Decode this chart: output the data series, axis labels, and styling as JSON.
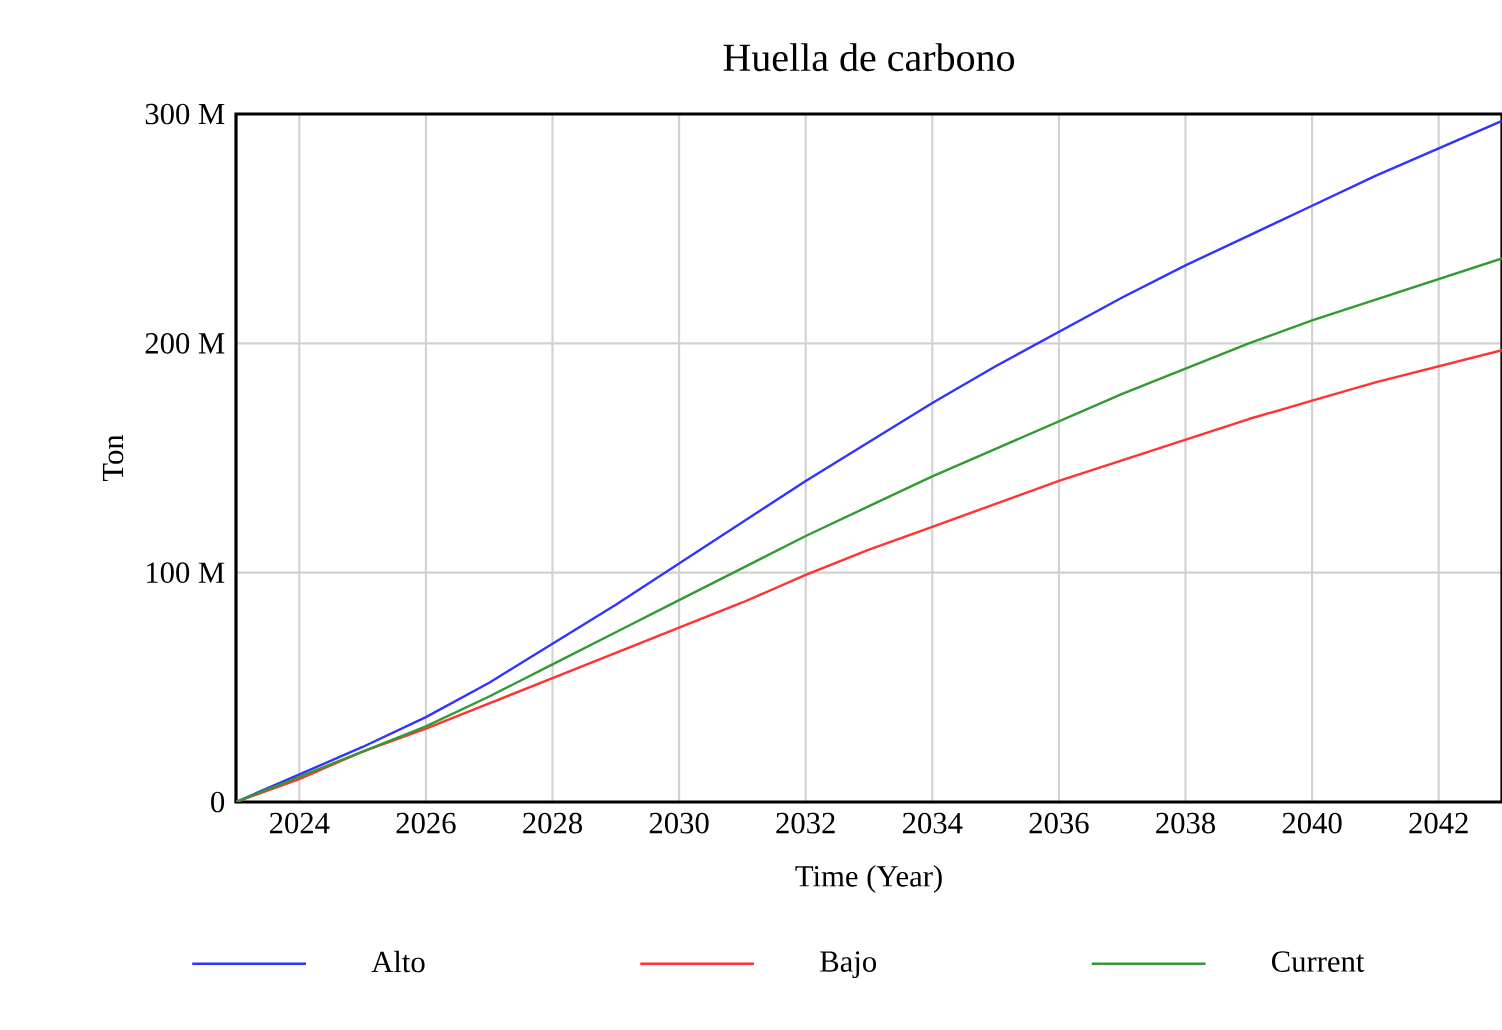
{
  "chart_data": {
    "type": "line",
    "title": "Huella de carbono",
    "xlabel": "Time (Year)",
    "ylabel": "Ton",
    "x": [
      2023,
      2024,
      2025,
      2026,
      2027,
      2028,
      2029,
      2030,
      2031,
      2032,
      2033,
      2034,
      2035,
      2036,
      2037,
      2038,
      2039,
      2040,
      2041,
      2042,
      2043
    ],
    "series": [
      {
        "name": "Alto",
        "color": "#3333ff",
        "values": [
          0,
          12000000,
          24000000,
          37000000,
          52000000,
          69000000,
          86000000,
          104000000,
          122000000,
          140000000,
          157000000,
          174000000,
          190000000,
          205000000,
          220000000,
          234000000,
          247000000,
          260000000,
          273000000,
          285000000,
          297000000
        ]
      },
      {
        "name": "Bajo",
        "color": "#ff3333",
        "values": [
          0,
          10000000,
          22000000,
          32000000,
          43000000,
          54000000,
          65000000,
          76000000,
          87000000,
          99000000,
          110000000,
          120000000,
          130000000,
          140000000,
          149000000,
          158000000,
          167000000,
          175000000,
          183000000,
          190000000,
          197000000
        ]
      },
      {
        "name": "Current",
        "color": "#339933",
        "values": [
          0,
          11000000,
          22000000,
          33000000,
          46000000,
          60000000,
          74000000,
          88000000,
          102000000,
          116000000,
          129000000,
          142000000,
          154000000,
          166000000,
          178000000,
          189000000,
          200000000,
          210000000,
          219000000,
          228000000,
          237000000
        ]
      }
    ],
    "xlim": [
      2023,
      2043
    ],
    "xticks": [
      2024,
      2026,
      2028,
      2030,
      2032,
      2034,
      2036,
      2038,
      2040,
      2042
    ],
    "ylim": [
      0,
      300000000
    ],
    "yticks": [
      0,
      {
        "value": 100000000,
        "label": "100 M"
      },
      {
        "value": 200000000,
        "label": "200 M"
      },
      {
        "value": 300000000,
        "label": "300 M"
      }
    ],
    "grid": true,
    "legend": "bottom",
    "marker": "none",
    "line_style": "solid"
  }
}
